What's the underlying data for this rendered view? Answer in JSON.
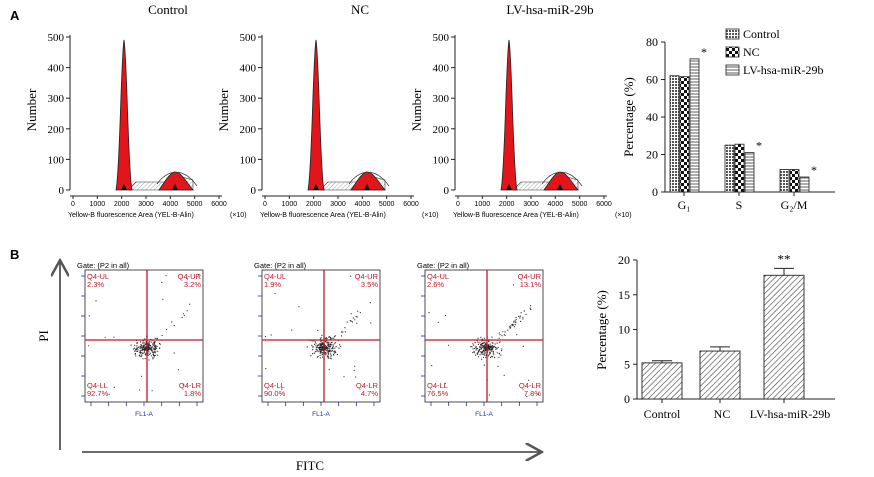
{
  "panel_labels": {
    "a": "A",
    "b": "B"
  },
  "histograms": [
    {
      "title": "Control",
      "ylabel": "Number",
      "yticks": [
        "0",
        "100",
        "200",
        "300",
        "400",
        "500"
      ],
      "xticks": [
        "0",
        "1000",
        "2000",
        "3000",
        "4000",
        "5000",
        "6000"
      ],
      "xlabel": "Yellow-B fluorescence Area (YEL-B-Alin)",
      "xunit": "(×10)"
    },
    {
      "title": "NC",
      "ylabel": "Number",
      "yticks": [
        "0",
        "100",
        "200",
        "300",
        "400",
        "500"
      ],
      "xticks": [
        "0",
        "1000",
        "2000",
        "3000",
        "4000",
        "5000",
        "6000"
      ],
      "xlabel": "Yellow-B fluorescence Area (YEL-B-Alin)",
      "xunit": "(×10)"
    },
    {
      "title": "LV-hsa-miR-29b",
      "ylabel": "Number",
      "yticks": [
        "0",
        "100",
        "200",
        "300",
        "400",
        "500"
      ],
      "xticks": [
        "0",
        "1000",
        "2000",
        "3000",
        "4000",
        "5000",
        "6000"
      ],
      "xlabel": "Yellow-B fluorescence Area (YEL-B-Alin)",
      "xunit": "(×10)"
    }
  ],
  "flow_plots": [
    {
      "gate": "Gate: (P2 in all)",
      "ul_name": "Q4-UL",
      "ul_val": "2.3%",
      "ur_name": "Q4-UR",
      "ur_val": "3.2%",
      "ll_name": "Q4-LL",
      "ll_val": "92.7%",
      "lr_name": "Q4-LR",
      "lr_val": "1.8%",
      "xaxis": "FL1-A"
    },
    {
      "gate": "Gate: (P2 in all)",
      "ul_name": "Q4-UL",
      "ul_val": "1.9%",
      "ur_name": "Q4-UR",
      "ur_val": "3.5%",
      "ll_name": "Q4-LL",
      "ll_val": "90.0%",
      "lr_name": "Q4-LR",
      "lr_val": "4.7%",
      "xaxis": "FL1-A"
    },
    {
      "gate": "Gate: (P2 in all)",
      "ul_name": "Q4-UL",
      "ul_val": "2.6%",
      "ur_name": "Q4-UR",
      "ur_val": "13.1%",
      "ll_name": "Q4-LL",
      "ll_val": "76.5%",
      "lr_name": "Q4-LR",
      "lr_val": "7.8%",
      "xaxis": "FL1-A"
    }
  ],
  "flow_axes": {
    "y": "PI",
    "x": "FITC"
  },
  "chart_data": [
    {
      "type": "bar",
      "categories": [
        "G₁",
        "S",
        "G₂/M"
      ],
      "series": [
        {
          "name": "Control",
          "values": [
            62,
            25,
            12
          ],
          "pattern": "dense"
        },
        {
          "name": "NC",
          "values": [
            61.5,
            25.5,
            12
          ],
          "pattern": "check"
        },
        {
          "name": "LV-hsa-miR-29b",
          "values": [
            71,
            21,
            8
          ],
          "pattern": "hlines"
        }
      ],
      "significance": [
        "*",
        "*",
        "*"
      ],
      "ylabel": "Percentage (%)",
      "ylim": [
        0,
        80
      ],
      "yticks": [
        0,
        20,
        40,
        60,
        80
      ],
      "legend": "top-right"
    },
    {
      "type": "bar",
      "categories": [
        "Control",
        "NC",
        "LV-hsa-miR-29b"
      ],
      "values": [
        5.2,
        6.9,
        17.8
      ],
      "errors": [
        0.3,
        0.6,
        1.0
      ],
      "significance": [
        "",
        "",
        "**"
      ],
      "ylabel": "Percentage (%)",
      "ylim": [
        0,
        20
      ],
      "yticks": [
        0,
        5,
        10,
        15,
        20
      ]
    }
  ]
}
